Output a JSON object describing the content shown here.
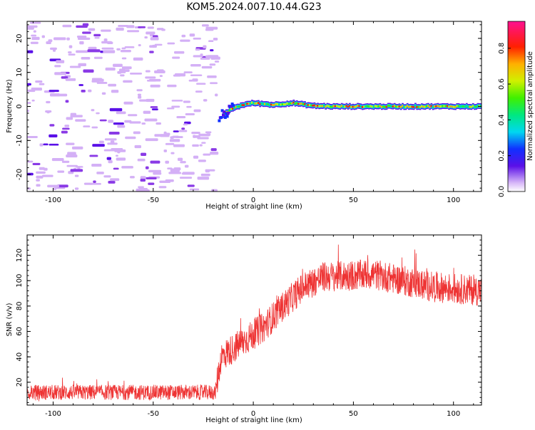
{
  "figure_title": "KOM5.2024.007.10.44.G23",
  "chart_data": [
    {
      "type": "heatmap",
      "xlabel": "Height of straight line (km)",
      "ylabel": "Frequency (Hz)",
      "xlim": [
        -113,
        114
      ],
      "ylim": [
        -25,
        25
      ],
      "x_ticks": [
        -100,
        -50,
        0,
        50,
        100
      ],
      "y_ticks": [
        -20,
        -10,
        0,
        10,
        20
      ],
      "colorbar": {
        "label": "Normalized spectral amplitude",
        "range": [
          0,
          0.95
        ],
        "ticks": [
          0.0,
          0.2,
          0.4,
          0.6,
          0.8
        ],
        "colormap": "gist_ncar_like"
      },
      "features": {
        "noise_region_x": [
          -113,
          -18
        ],
        "transition": [
          [
            -18,
            -3.5
          ],
          [
            -15,
            -2.5
          ],
          [
            -10,
            -0.5
          ],
          [
            -5,
            0.5
          ],
          [
            0,
            1
          ],
          [
            10,
            0.5
          ],
          [
            20,
            1
          ],
          [
            30,
            0.2
          ],
          [
            40,
            0
          ],
          [
            114,
            0
          ]
        ],
        "signal_track_x": [
          -15,
          114
        ],
        "signal_frequency_hz": 0
      }
    },
    {
      "type": "line",
      "xlabel": "Height of straight line (km)",
      "ylabel": "SNR (v/v)",
      "xlim": [
        -113,
        114
      ],
      "ylim": [
        2,
        136
      ],
      "x_ticks": [
        -100,
        -50,
        0,
        50,
        100
      ],
      "y_ticks": [
        20,
        40,
        60,
        80,
        100,
        120
      ],
      "color": "#ee3333",
      "trend_points": [
        [
          -113,
          12
        ],
        [
          -80,
          12
        ],
        [
          -40,
          12
        ],
        [
          -19,
          12
        ],
        [
          -16,
          40
        ],
        [
          -5,
          52
        ],
        [
          5,
          63
        ],
        [
          15,
          80
        ],
        [
          25,
          95
        ],
        [
          35,
          103
        ],
        [
          50,
          104
        ],
        [
          60,
          105
        ],
        [
          75,
          100
        ],
        [
          90,
          95
        ],
        [
          114,
          92
        ]
      ]
    }
  ]
}
